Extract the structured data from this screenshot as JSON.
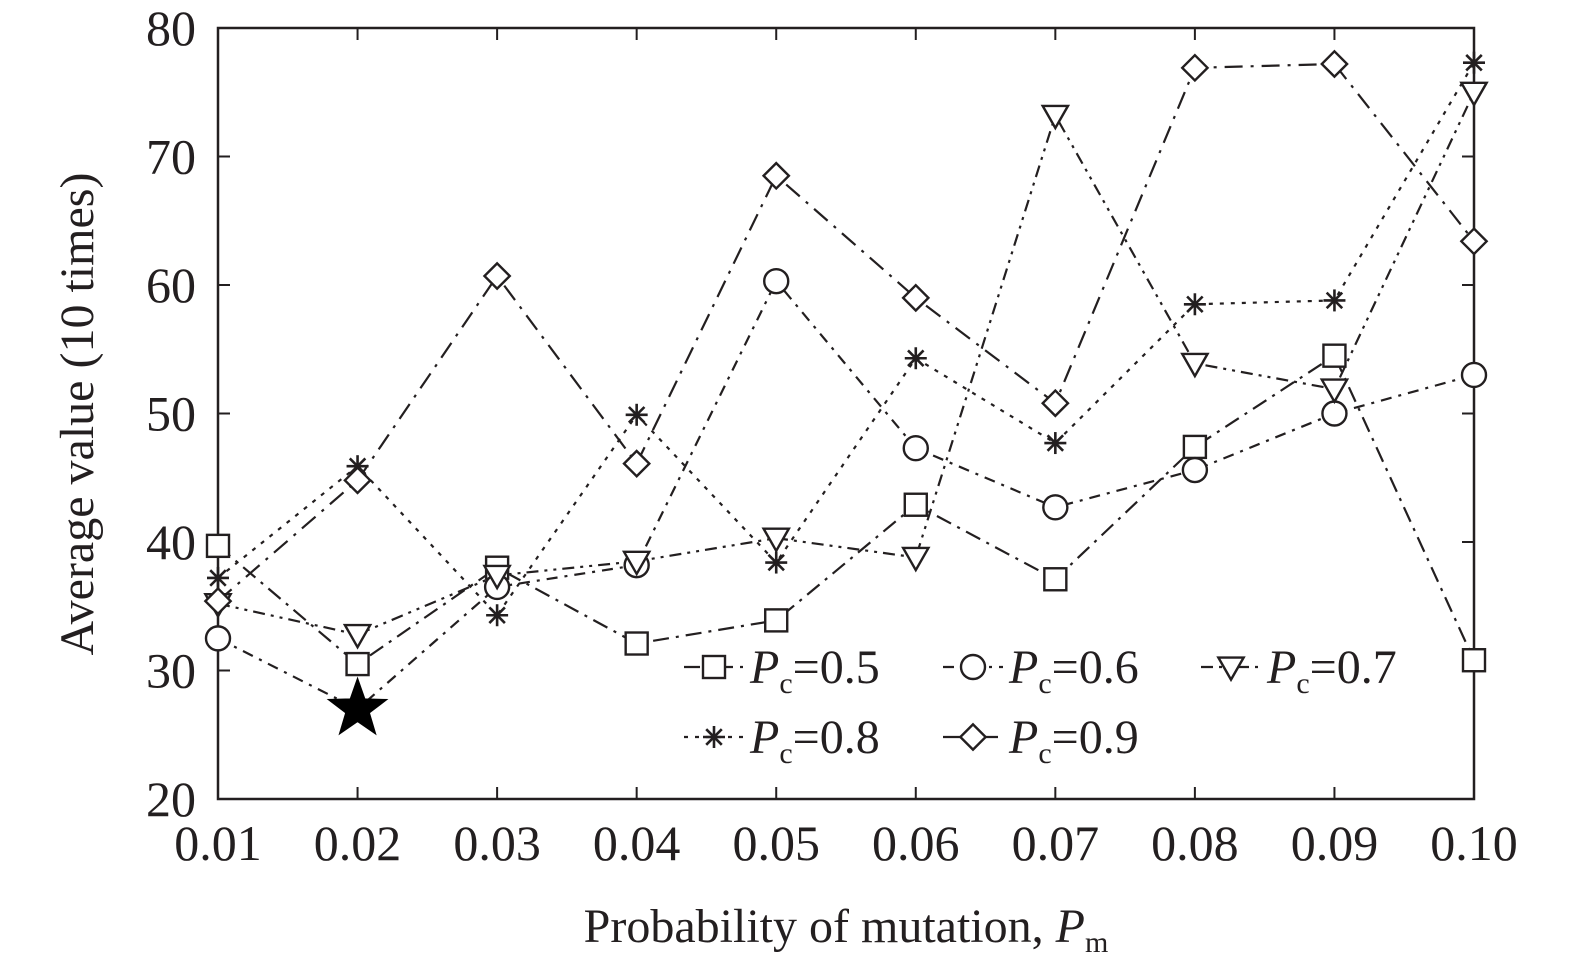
{
  "chart_data": {
    "type": "line",
    "title": "",
    "xlabel": "Probability of mutation, ",
    "xlabel_symbol": "P",
    "xlabel_subscript": "m",
    "ylabel": "Average value (10 times)",
    "x": [
      0.01,
      0.02,
      0.03,
      0.04,
      0.05,
      0.06,
      0.07,
      0.08,
      0.09,
      0.1
    ],
    "x_tick_labels": [
      "0.01",
      "0.02",
      "0.03",
      "0.04",
      "0.05",
      "0.06",
      "0.07",
      "0.08",
      "0.09",
      "0.10"
    ],
    "ylim": [
      20,
      80
    ],
    "y_ticks": [
      20,
      30,
      40,
      50,
      60,
      70,
      80
    ],
    "y_tick_labels": [
      "20",
      "30",
      "40",
      "50",
      "60",
      "70",
      "80"
    ],
    "grid": false,
    "legend_position": "bottom-right",
    "series": [
      {
        "name": "Pc=0.5",
        "symbol": "P",
        "subscript": "c",
        "value_text": "=0.5",
        "marker": "square",
        "dash": "long-dash-dot",
        "values": [
          39.7,
          30.5,
          38.0,
          32.1,
          33.9,
          42.9,
          37.1,
          47.4,
          54.5,
          30.8
        ]
      },
      {
        "name": "Pc=0.6",
        "symbol": "P",
        "subscript": "c",
        "value_text": "=0.6",
        "marker": "circle",
        "dash": "dash-dot",
        "values": [
          32.5,
          27.0,
          36.5,
          38.2,
          60.3,
          47.3,
          42.7,
          45.6,
          50.0,
          53.0
        ]
      },
      {
        "name": "Pc=0.7",
        "symbol": "P",
        "subscript": "c",
        "value_text": "=0.7",
        "marker": "triangle-down",
        "dash": "dash-dot-dot",
        "values": [
          35.2,
          32.8,
          37.4,
          38.5,
          40.3,
          38.8,
          73.2,
          53.9,
          51.9,
          75.0
        ]
      },
      {
        "name": "Pc=0.8",
        "symbol": "P",
        "subscript": "c",
        "value_text": "=0.8",
        "marker": "asterisk",
        "dash": "dotted",
        "values": [
          37.2,
          45.9,
          34.3,
          49.9,
          38.4,
          54.3,
          47.7,
          58.5,
          58.8,
          77.3
        ]
      },
      {
        "name": "Pc=0.9",
        "symbol": "P",
        "subscript": "c",
        "value_text": "=0.9",
        "marker": "diamond",
        "dash": "dash-dot-long",
        "values": [
          35.4,
          44.8,
          60.7,
          46.1,
          68.5,
          59.0,
          50.8,
          76.9,
          77.2,
          63.4
        ]
      }
    ],
    "annotations": [
      {
        "type": "star-marker",
        "x": 0.02,
        "y": 27.0,
        "meaning": "optimum point"
      }
    ]
  },
  "colors": {
    "ink": "#231f20",
    "background": "#ffffff"
  }
}
